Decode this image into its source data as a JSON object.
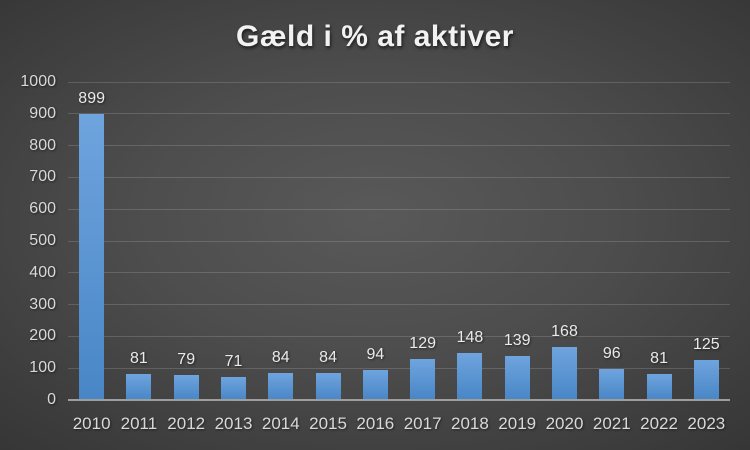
{
  "chart_data": {
    "type": "bar",
    "title": "Gæld i % af aktiver",
    "categories": [
      "2010",
      "2011",
      "2012",
      "2013",
      "2014",
      "2015",
      "2016",
      "2017",
      "2018",
      "2019",
      "2020",
      "2021",
      "2022",
      "2023"
    ],
    "values": [
      899,
      81,
      79,
      71,
      84,
      84,
      94,
      129,
      148,
      139,
      168,
      96,
      81,
      125
    ],
    "xlabel": "",
    "ylabel": "",
    "ylim": [
      0,
      1000
    ],
    "ytick_interval": 100,
    "ytick_labels": [
      "0",
      "100",
      "200",
      "300",
      "400",
      "500",
      "600",
      "700",
      "800",
      "900",
      "1000"
    ],
    "grid": "horizontal",
    "legend": "none",
    "value_labels_shown": true
  },
  "colors": {
    "background_center": "#595959",
    "background_edge": "#232323",
    "bar_top": "#6FA4DE",
    "bar_bottom": "#4886C6",
    "gridline": "rgba(255,255,255,0.15)",
    "axis_line": "#9e9e9e",
    "tick_label": "#d9d9d9",
    "value_label": "#eaeaea",
    "title": "#f2f2f2"
  }
}
